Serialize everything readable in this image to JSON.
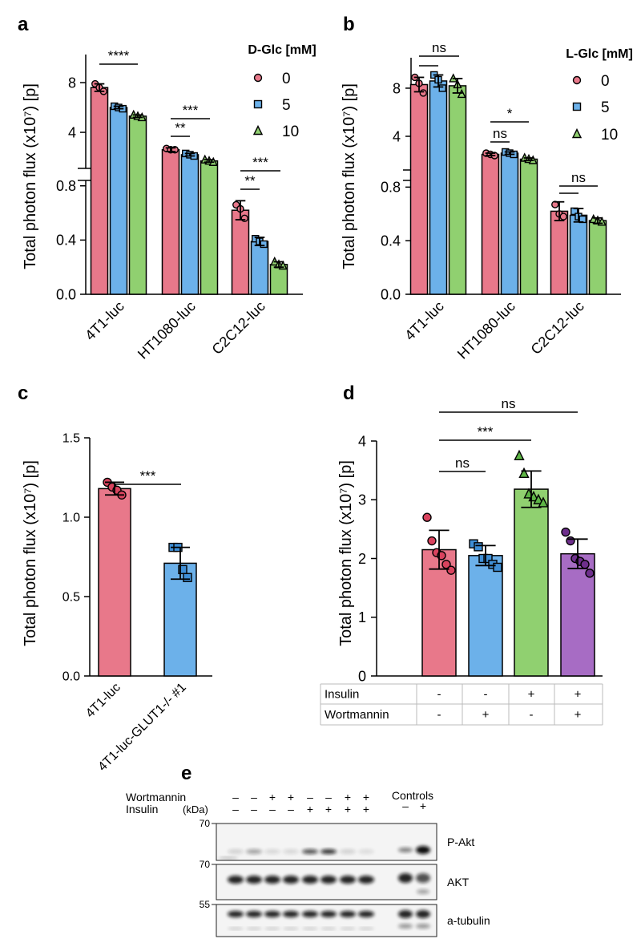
{
  "chart_data": [
    {
      "panel": "a",
      "type": "bar",
      "ylabel": "Total photon flux (x10⁷) [p]",
      "categories": [
        "4T1-luc",
        "HT1080-luc",
        "C2C12-luc"
      ],
      "segments": [
        {
          "ylim": [
            0,
            0.84
          ],
          "yticks": [
            {
              "value": 0,
              "label": "0.0"
            },
            0.4,
            0.8
          ]
        },
        {
          "ylim": [
            1.1,
            10.26
          ],
          "yticks": [
            4,
            8
          ]
        }
      ],
      "legend_title": "D-Glc [mM]",
      "series": [
        {
          "name": "0",
          "color": "#e8788a",
          "marker": "circle",
          "values": [
            7.6,
            2.6,
            0.62
          ],
          "errors": [
            0.3,
            0.15,
            0.07
          ],
          "points": [
            [
              7.9,
              7.6,
              7.3
            ],
            [
              2.7,
              2.6,
              2.6
            ],
            [
              0.66,
              0.63,
              0.56
            ]
          ]
        },
        {
          "name": "5",
          "color": "#6cb1ea",
          "marker": "square",
          "values": [
            6.0,
            2.2,
            0.39
          ],
          "errors": [
            0.1,
            0.1,
            0.03
          ],
          "points": [
            [
              6.1,
              6.0,
              5.9
            ],
            [
              2.3,
              2.2,
              2.1
            ],
            [
              0.41,
              0.39,
              0.37
            ]
          ]
        },
        {
          "name": "10",
          "color": "#90d070",
          "marker": "triangle",
          "values": [
            5.3,
            1.7,
            0.22
          ],
          "errors": [
            0.1,
            0.1,
            0.02
          ],
          "points": [
            [
              5.4,
              5.3,
              5.2
            ],
            [
              1.8,
              1.7,
              1.6
            ],
            [
              0.24,
              0.22,
              0.21
            ]
          ]
        }
      ],
      "annotations": [
        "****",
        "**",
        "***",
        "**",
        "***"
      ]
    },
    {
      "panel": "b",
      "type": "bar",
      "ylabel": "Total photon flux (x10⁷) [p]",
      "categories": [
        "4T1-luc",
        "HT1080-luc",
        "C2C12-luc"
      ],
      "segments": [
        {
          "ylim": [
            0,
            0.85
          ],
          "yticks": [
            {
              "value": 0,
              "label": "0.0"
            },
            0.4,
            0.8
          ]
        },
        {
          "ylim": [
            1.2,
            10.53
          ],
          "yticks": [
            4,
            8
          ]
        }
      ],
      "legend_title": "L-Glc [mM]",
      "series": [
        {
          "name": "0",
          "color": "#e8788a",
          "marker": "circle",
          "values": [
            8.3,
            2.5,
            0.62
          ],
          "errors": [
            0.6,
            0.1,
            0.07
          ],
          "points": [
            [
              8.9,
              8.4,
              7.6
            ],
            [
              2.6,
              2.5,
              2.4
            ],
            [
              0.67,
              0.6,
              0.58
            ]
          ]
        },
        {
          "name": "5",
          "color": "#6cb1ea",
          "marker": "square",
          "values": [
            8.6,
            2.6,
            0.59
          ],
          "errors": [
            0.5,
            0.1,
            0.05
          ],
          "points": [
            [
              9.1,
              8.7,
              8.0
            ],
            [
              2.7,
              2.6,
              2.5
            ],
            [
              0.62,
              0.58,
              0.56
            ]
          ]
        },
        {
          "name": "10",
          "color": "#90d070",
          "marker": "triangle",
          "values": [
            8.2,
            2.1,
            0.55
          ],
          "errors": [
            0.6,
            0.1,
            0.02
          ],
          "points": [
            [
              8.8,
              8.3,
              7.5
            ],
            [
              2.2,
              2.1,
              2.0
            ],
            [
              0.56,
              0.55,
              0.54
            ]
          ]
        }
      ],
      "annotations": [
        "ns",
        "ns",
        "*",
        "ns"
      ]
    },
    {
      "panel": "c",
      "type": "bar",
      "ylabel": "Total photon flux (x10⁷) [p]",
      "categories": [
        "4T1-luc",
        "4T1-luc-GLUT1-/- #1"
      ],
      "colors": [
        "#e8788a",
        "#6cb1ea"
      ],
      "point_colors": [
        "#d9435e",
        "#3f8fd6"
      ],
      "markers": [
        "circle",
        "square"
      ],
      "values": [
        1.18,
        0.71
      ],
      "errors": [
        0.04,
        0.1
      ],
      "points": [
        [
          1.22,
          1.19,
          1.17,
          1.14
        ],
        [
          0.81,
          0.81,
          0.67,
          0.62
        ]
      ],
      "ylim": [
        0,
        1.5
      ],
      "yticks": [
        {
          "value": 0,
          "label": "0.0"
        },
        0.5,
        {
          "value": 1,
          "label": "1.0"
        },
        1.5
      ],
      "annotations": [
        "***"
      ]
    },
    {
      "panel": "d",
      "type": "bar",
      "ylabel": "Total photon flux (x10⁷) [p]",
      "categories": [
        null,
        null,
        null,
        null
      ],
      "colors": [
        "#e8788a",
        "#6cb1ea",
        "#90d070",
        "#a76cc4"
      ],
      "point_colors": [
        "#d9435e",
        "#3f8fd6",
        "#5db545",
        "#6e2f8c"
      ],
      "markers": [
        "circle",
        "square",
        "triangle",
        "circle"
      ],
      "values": [
        2.15,
        2.05,
        3.18,
        2.08
      ],
      "errors": [
        0.33,
        0.17,
        0.31,
        0.25
      ],
      "points": [
        [
          2.7,
          2.3,
          2.1,
          2.05,
          1.9,
          1.8
        ],
        [
          2.25,
          2.2,
          2.0,
          2.0,
          1.9,
          1.85
        ],
        [
          3.75,
          3.45,
          3.1,
          3.05,
          3.0,
          2.95
        ],
        [
          2.45,
          2.3,
          2.0,
          1.95,
          1.9,
          1.75
        ]
      ],
      "ylim": [
        0,
        4
      ],
      "yticks": [
        0,
        1,
        2,
        3,
        4
      ],
      "annotations": [
        "ns",
        "***",
        "ns"
      ],
      "table": {
        "rows": [
          {
            "label": "Insulin",
            "cells": [
              "-",
              "-",
              "+",
              "+"
            ]
          },
          {
            "label": "Wortmannin",
            "cells": [
              "-",
              "+",
              "-",
              "+"
            ]
          }
        ]
      }
    }
  ],
  "blot": {
    "panel": "e",
    "treatments": [
      {
        "label": "Wortmannin",
        "signs": [
          "–",
          "–",
          "+",
          "+",
          "–",
          "–",
          "+",
          "+"
        ]
      },
      {
        "label": "Insulin",
        "signs": [
          "–",
          "–",
          "–",
          "–",
          "+",
          "+",
          "+",
          "+"
        ]
      }
    ],
    "unit": "(kDa)",
    "controls": {
      "label": "Controls",
      "signs": [
        "–",
        "+"
      ]
    },
    "markers": [
      "70",
      "70",
      "55"
    ],
    "bands": [
      "P-Akt",
      "AKT",
      "a-tubulin"
    ]
  }
}
